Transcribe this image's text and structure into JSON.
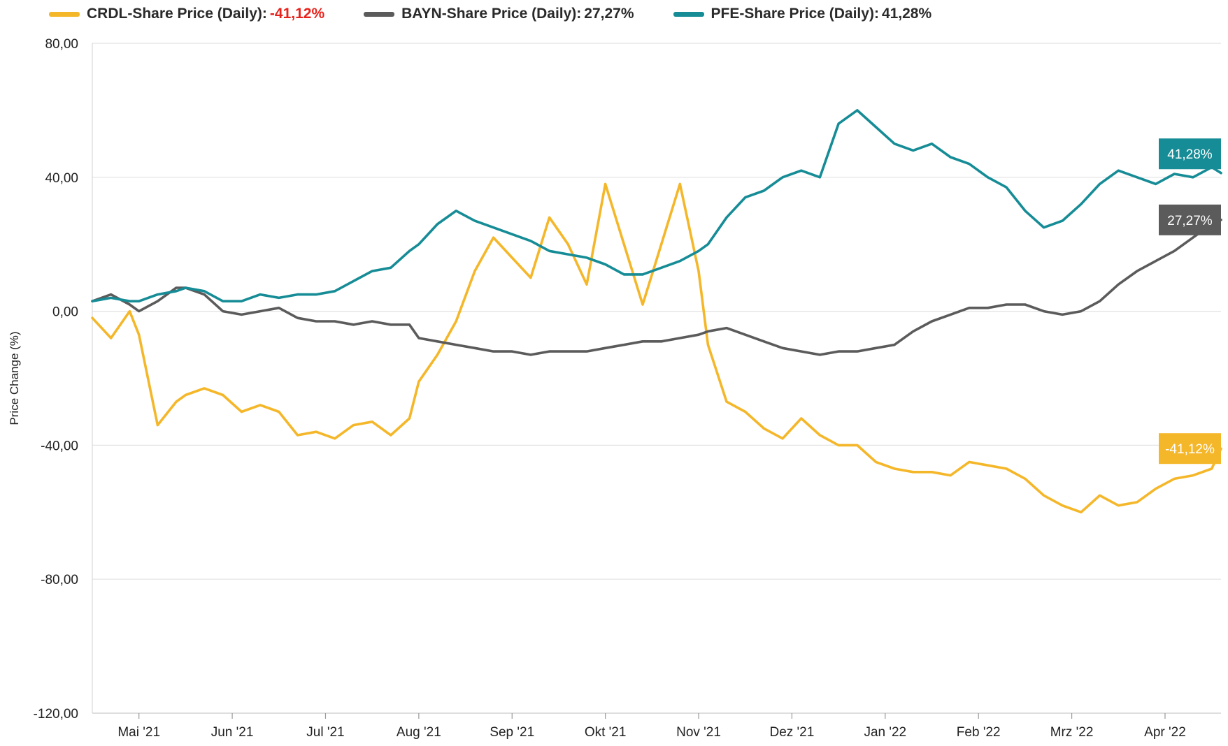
{
  "chart_data": {
    "type": "line",
    "title": "",
    "xlabel": "",
    "ylabel": "Price Change (%)",
    "ylim": [
      -120,
      80
    ],
    "yticks": [
      80,
      40,
      0,
      -40,
      -80,
      -120
    ],
    "ytick_labels": [
      "80,00",
      "40,00",
      "0,00",
      "-40,00",
      "-80,00",
      "-120,00"
    ],
    "x_range": [
      0,
      12.1
    ],
    "month_ticks": [
      {
        "label": "Mai '21",
        "pos": 0.5
      },
      {
        "label": "Jun '21",
        "pos": 1.5
      },
      {
        "label": "Jul '21",
        "pos": 2.5
      },
      {
        "label": "Aug '21",
        "pos": 3.5
      },
      {
        "label": "Sep '21",
        "pos": 4.5
      },
      {
        "label": "Okt '21",
        "pos": 5.5
      },
      {
        "label": "Nov '21",
        "pos": 6.5
      },
      {
        "label": "Dez '21",
        "pos": 7.5
      },
      {
        "label": "Jan '22",
        "pos": 8.5
      },
      {
        "label": "Feb '22",
        "pos": 9.5
      },
      {
        "label": "Mrz '22",
        "pos": 10.5
      },
      {
        "label": "Apr '22",
        "pos": 11.5
      }
    ],
    "grid": true,
    "legend_position": "top",
    "series": [
      {
        "name": "CRDL-Share Price (Daily)",
        "color": "#f5b72a",
        "value_color": "#e8221b",
        "final_label": "-41,12%",
        "x": [
          0,
          0.2,
          0.4,
          0.5,
          0.7,
          0.9,
          1.0,
          1.2,
          1.4,
          1.6,
          1.8,
          2.0,
          2.2,
          2.4,
          2.6,
          2.8,
          3.0,
          3.2,
          3.4,
          3.5,
          3.7,
          3.9,
          4.1,
          4.3,
          4.5,
          4.7,
          4.9,
          5.1,
          5.3,
          5.5,
          5.7,
          5.9,
          6.1,
          6.3,
          6.5,
          6.6,
          6.8,
          7.0,
          7.2,
          7.4,
          7.6,
          7.8,
          8.0,
          8.2,
          8.4,
          8.6,
          8.8,
          9.0,
          9.2,
          9.4,
          9.6,
          9.8,
          10.0,
          10.2,
          10.4,
          10.6,
          10.8,
          11.0,
          11.2,
          11.4,
          11.6,
          11.8,
          12.0,
          12.1
        ],
        "values": [
          -2,
          -8,
          0,
          -7,
          -34,
          -27,
          -25,
          -23,
          -25,
          -30,
          -28,
          -30,
          -37,
          -36,
          -38,
          -34,
          -33,
          -37,
          -32,
          -21,
          -13,
          -3,
          12,
          22,
          16,
          10,
          28,
          20,
          8,
          38,
          20,
          2,
          20,
          38,
          12,
          -10,
          -27,
          -30,
          -35,
          -38,
          -32,
          -37,
          -40,
          -40,
          -45,
          -47,
          -48,
          -48,
          -49,
          -45,
          -46,
          -47,
          -50,
          -55,
          -58,
          -60,
          -55,
          -58,
          -57,
          -53,
          -50,
          -49,
          -47,
          -41
        ]
      },
      {
        "name": "BAYN-Share Price (Daily)",
        "color": "#5b5b5b",
        "value_color": "#2a2a2a",
        "final_label": "27,27%",
        "x": [
          0,
          0.2,
          0.4,
          0.5,
          0.7,
          0.9,
          1.0,
          1.2,
          1.4,
          1.6,
          1.8,
          2.0,
          2.2,
          2.4,
          2.6,
          2.8,
          3.0,
          3.2,
          3.4,
          3.5,
          3.7,
          3.9,
          4.1,
          4.3,
          4.5,
          4.7,
          4.9,
          5.1,
          5.3,
          5.5,
          5.7,
          5.9,
          6.1,
          6.3,
          6.5,
          6.6,
          6.8,
          7.0,
          7.2,
          7.4,
          7.6,
          7.8,
          8.0,
          8.2,
          8.4,
          8.6,
          8.8,
          9.0,
          9.2,
          9.4,
          9.6,
          9.8,
          10.0,
          10.2,
          10.4,
          10.6,
          10.8,
          11.0,
          11.2,
          11.4,
          11.6,
          11.8,
          12.0,
          12.1
        ],
        "values": [
          3,
          5,
          2,
          0,
          3,
          7,
          7,
          5,
          0,
          -1,
          0,
          1,
          -2,
          -3,
          -3,
          -4,
          -3,
          -4,
          -4,
          -8,
          -9,
          -10,
          -11,
          -12,
          -12,
          -13,
          -12,
          -12,
          -12,
          -11,
          -10,
          -9,
          -9,
          -8,
          -7,
          -6,
          -5,
          -7,
          -9,
          -11,
          -12,
          -13,
          -12,
          -12,
          -11,
          -10,
          -6,
          -3,
          -1,
          1,
          1,
          2,
          2,
          0,
          -1,
          0,
          3,
          8,
          12,
          15,
          18,
          22,
          26,
          27.27
        ]
      },
      {
        "name": "PFE-Share Price (Daily)",
        "color": "#168c96",
        "value_color": "#2a2a2a",
        "final_label": "41,28%",
        "x": [
          0,
          0.2,
          0.4,
          0.5,
          0.7,
          0.9,
          1.0,
          1.2,
          1.4,
          1.6,
          1.8,
          2.0,
          2.2,
          2.4,
          2.6,
          2.8,
          3.0,
          3.2,
          3.4,
          3.5,
          3.7,
          3.9,
          4.1,
          4.3,
          4.5,
          4.7,
          4.9,
          5.1,
          5.3,
          5.5,
          5.7,
          5.9,
          6.1,
          6.3,
          6.5,
          6.6,
          6.8,
          7.0,
          7.2,
          7.4,
          7.6,
          7.8,
          8.0,
          8.2,
          8.4,
          8.6,
          8.8,
          9.0,
          9.2,
          9.4,
          9.6,
          9.8,
          10.0,
          10.2,
          10.4,
          10.6,
          10.8,
          11.0,
          11.2,
          11.4,
          11.6,
          11.8,
          12.0,
          12.1
        ],
        "values": [
          3,
          4,
          3,
          3,
          5,
          6,
          7,
          6,
          3,
          3,
          5,
          4,
          5,
          5,
          6,
          9,
          12,
          13,
          18,
          20,
          26,
          30,
          27,
          25,
          23,
          21,
          18,
          17,
          16,
          14,
          11,
          11,
          13,
          15,
          18,
          20,
          28,
          34,
          36,
          40,
          42,
          40,
          56,
          60,
          55,
          50,
          48,
          50,
          46,
          44,
          40,
          37,
          30,
          25,
          27,
          32,
          38,
          42,
          40,
          38,
          41,
          40,
          43,
          41.28
        ]
      }
    ]
  }
}
